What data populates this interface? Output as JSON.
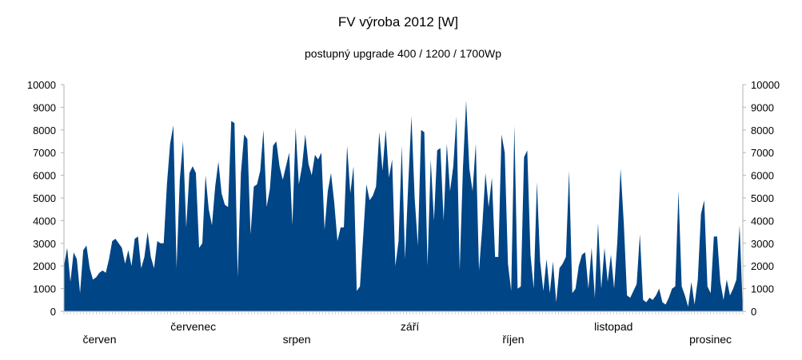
{
  "chart_data": {
    "type": "area",
    "title": "FV výroba 2012 [W]",
    "subtitle": "postupný upgrade 400 / 1200 / 1700Wp",
    "ylim": [
      0,
      10000
    ],
    "yticks": [
      0,
      1000,
      2000,
      3000,
      4000,
      5000,
      6000,
      7000,
      8000,
      9000,
      10000
    ],
    "xlim": [
      0,
      210
    ],
    "grid": false,
    "color": "#004586",
    "months": [
      {
        "label": "červen",
        "row": 2,
        "center": 11
      },
      {
        "label": "červenec",
        "row": 1,
        "center": 40
      },
      {
        "label": "srpen",
        "row": 2,
        "center": 72
      },
      {
        "label": "září",
        "row": 1,
        "center": 107
      },
      {
        "label": "říjen",
        "row": 2,
        "center": 139
      },
      {
        "label": "listopad",
        "row": 1,
        "center": 170
      },
      {
        "label": "prosinec",
        "row": 2,
        "center": 200
      }
    ],
    "series": [
      {
        "values": [
          2000,
          2800,
          1300,
          2600,
          2300,
          800,
          2700,
          2900,
          1900,
          1400,
          1500,
          1700,
          1800,
          1700,
          2300,
          3100,
          3200,
          3000,
          2800,
          2100,
          2700,
          2000,
          3200,
          3300,
          1900,
          2400,
          3500,
          2400,
          1900,
          3100,
          3000,
          3000,
          5600,
          7400,
          8200,
          1900,
          5800,
          7500,
          3700,
          6100,
          6400,
          6100,
          2800,
          3000,
          6000,
          4500,
          3800,
          5500,
          6600,
          5200,
          4700,
          4600,
          8400,
          8300,
          1500,
          6100,
          7800,
          7600,
          3400,
          5500,
          5600,
          6200,
          8000,
          4600,
          5400,
          7300,
          7500,
          6400,
          5800,
          6400,
          7000,
          3800,
          8100,
          5600,
          6400,
          7800,
          6500,
          6000,
          6900,
          6700,
          7000,
          3600,
          5300,
          6100,
          4800,
          3100,
          3700,
          3700,
          7300,
          5200,
          6400,
          900,
          1100,
          3300,
          5600,
          4900,
          5100,
          5500,
          7900,
          6200,
          8000,
          5900,
          6700,
          2000,
          3100,
          7300,
          2300,
          5600,
          8600,
          5000,
          2900,
          8000,
          7900,
          2000,
          6700,
          4000,
          7100,
          7200,
          4000,
          7400,
          5300,
          6400,
          8600,
          1800,
          6300,
          9300,
          6300,
          5300,
          7400,
          1800,
          3700,
          6100,
          4600,
          5900,
          2400,
          2400,
          7800,
          7000,
          2100,
          900,
          8200,
          1000,
          1100,
          6800,
          7100,
          2500,
          1000,
          5700,
          2200,
          900,
          2300,
          800,
          2200,
          400,
          1900,
          2100,
          2400,
          6200,
          800,
          1000,
          2000,
          2500,
          2600,
          1000,
          2800,
          600,
          3900,
          1000,
          2800,
          1300,
          2500,
          1000,
          3100,
          6300,
          3900,
          700,
          600,
          900,
          1200,
          3400,
          500,
          400,
          600,
          500,
          700,
          1000,
          400,
          300,
          600,
          1000,
          1100,
          5300,
          1100,
          700,
          200,
          1300,
          300,
          1400,
          4300,
          4900,
          1100,
          800,
          3300,
          3300,
          1300,
          500,
          1400,
          700,
          1000,
          1400,
          3800,
          0
        ]
      }
    ]
  }
}
